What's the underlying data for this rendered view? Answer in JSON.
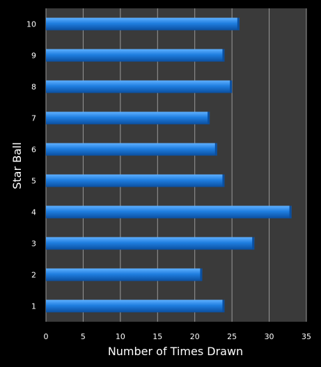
{
  "chart_data": {
    "type": "bar",
    "orientation": "horizontal",
    "categories": [
      "1",
      "2",
      "3",
      "4",
      "5",
      "6",
      "7",
      "8",
      "9",
      "10"
    ],
    "values": [
      24,
      21,
      28,
      33,
      24,
      23,
      22,
      25,
      24,
      26
    ],
    "xlabel": "Number of Times Drawn",
    "ylabel": "Star Ball",
    "xlim": [
      0,
      35
    ],
    "xticks": [
      "0",
      "5",
      "10",
      "15",
      "20",
      "25",
      "30",
      "35"
    ],
    "grid": "vertical",
    "colors": {
      "page_background": "#000000",
      "plot_background": "#3a3a3a",
      "gridline": "#9a9a9a",
      "bar_top": "#5fb0ff",
      "bar_mid": "#1f7ee0",
      "bar_bottom": "#0b4f9f",
      "text": "#ffffff"
    }
  }
}
